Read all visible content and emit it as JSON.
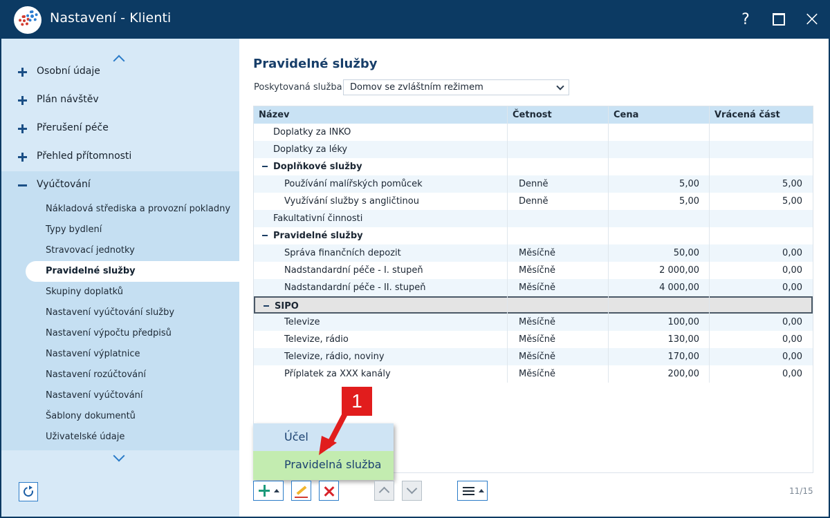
{
  "window": {
    "title": "Nastavení - Klienti",
    "help_label": "?"
  },
  "sidebar": {
    "items": [
      {
        "label": "Osobní údaje",
        "expanded": false
      },
      {
        "label": "Plán návštěv",
        "expanded": false
      },
      {
        "label": "Přerušení péče",
        "expanded": false
      },
      {
        "label": "Přehled přítomnosti",
        "expanded": false
      },
      {
        "label": "Vyúčtování",
        "expanded": true
      }
    ],
    "subitems": [
      {
        "label": "Nákladová střediska a provozní pokladny"
      },
      {
        "label": "Typy bydlení"
      },
      {
        "label": "Stravovací jednotky"
      },
      {
        "label": "Pravidelné služby",
        "active": true
      },
      {
        "label": "Skupiny doplatků"
      },
      {
        "label": "Nastavení vyúčtování služby"
      },
      {
        "label": "Nastavení výpočtu předpisů"
      },
      {
        "label": "Nastavení výplatnice"
      },
      {
        "label": "Nastavení rozúčtování"
      },
      {
        "label": "Nastavení vyúčtování"
      },
      {
        "label": "Šablony dokumentů"
      },
      {
        "label": "Uživatelské údaje"
      }
    ]
  },
  "main": {
    "title": "Pravidelné služby",
    "service_label": "Poskytovaná služba:",
    "service_value": "Domov se zvláštním režimem",
    "columns": [
      "Název",
      "Četnost",
      "Cena",
      "Vrácená část"
    ],
    "rows": [
      {
        "name": "Doplatky za INKO",
        "freq": "",
        "price": "",
        "refund": ""
      },
      {
        "name": "Doplatky za léky",
        "freq": "",
        "price": "",
        "refund": ""
      },
      {
        "name": "Doplňkové služby",
        "freq": "",
        "price": "",
        "refund": ""
      },
      {
        "name": "Používání malířských pomůcek",
        "freq": "Denně",
        "price": "5,00",
        "refund": "5,00"
      },
      {
        "name": "Využívání služby s angličtinou",
        "freq": "Denně",
        "price": "5,00",
        "refund": "5,00"
      },
      {
        "name": "Fakultativní činnosti",
        "freq": "",
        "price": "",
        "refund": ""
      },
      {
        "name": "Pravidelné služby",
        "freq": "",
        "price": "",
        "refund": ""
      },
      {
        "name": "Správa finančních depozit",
        "freq": "Měsíčně",
        "price": "50,00",
        "refund": "0,00"
      },
      {
        "name": "Nadstandardní péče - I. stupeň",
        "freq": "Měsíčně",
        "price": "2 000,00",
        "refund": "0,00"
      },
      {
        "name": "Nadstandardní péče - II. stupeň",
        "freq": "Měsíčně",
        "price": "4 000,00",
        "refund": "0,00"
      },
      {
        "name": "SIPO",
        "freq": "",
        "price": "",
        "refund": ""
      },
      {
        "name": "Televize",
        "freq": "Měsíčně",
        "price": "100,00",
        "refund": "0,00"
      },
      {
        "name": "Televize, rádio",
        "freq": "Měsíčně",
        "price": "130,00",
        "refund": "0,00"
      },
      {
        "name": "Televize, rádio, noviny",
        "freq": "Měsíčně",
        "price": "170,00",
        "refund": "0,00"
      },
      {
        "name": "Příplatek za XXX kanály",
        "freq": "Měsíčně",
        "price": "200,00",
        "refund": "0,00"
      }
    ],
    "popup_menu": [
      "Účel",
      "Pravidelná služba"
    ],
    "annotation_label": "1",
    "counter": "11/15"
  },
  "colors": {
    "titlebar": "#0c3a63",
    "sidebar_bg": "#d7e9f7",
    "accent_blue": "#2a7bc8",
    "annotation_red": "#e11d1d",
    "popup_highlight": "#c3ecb0"
  }
}
